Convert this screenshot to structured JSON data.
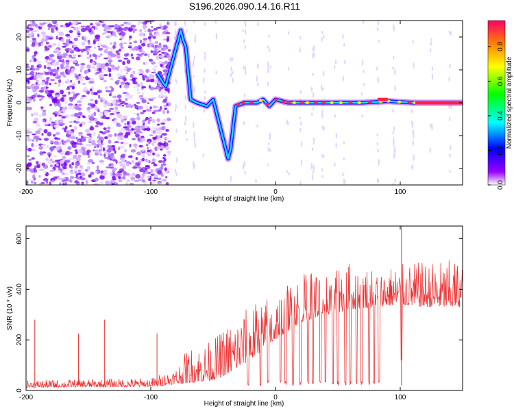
{
  "title": "S196.2026.090.14.16.R11",
  "colors": {
    "snr_line": "#ee3333",
    "background": "#ffffff",
    "axis": "#000000"
  },
  "chart_data": [
    {
      "type": "heatmap",
      "xlabel": "Height of straight line (km)",
      "ylabel": "Frequency (Hz)",
      "xlim": [
        -200,
        150
      ],
      "ylim": [
        -25,
        25
      ],
      "x_ticks": [
        -200,
        -100,
        0,
        100
      ],
      "x_tick_labels": [
        "-200",
        "-100",
        "0",
        "100"
      ],
      "y_ticks": [
        -20,
        -10,
        0,
        10,
        20
      ],
      "y_tick_labels": [
        "-20",
        "-10",
        "0",
        "10",
        "20"
      ],
      "colorbar": {
        "label": "Normalized spectral amplitude",
        "range": [
          0,
          0.95
        ],
        "ticks": [
          0.0,
          0.2,
          0.4,
          0.6,
          0.8
        ],
        "tick_labels": [
          "0.0",
          "0.2",
          "0.4",
          "0.6",
          "0.8"
        ],
        "colormap": [
          "#ffffff",
          "#9900ff",
          "#0000ff",
          "#00ffff",
          "#00ff00",
          "#ffff00",
          "#ff8800",
          "#ff0044"
        ]
      },
      "signal_track": [
        {
          "x": -95,
          "f": 9
        },
        {
          "x": -90,
          "f": 6
        },
        {
          "x": -88,
          "f": 5
        },
        {
          "x": -76,
          "f": 22
        },
        {
          "x": -74,
          "f": 19
        },
        {
          "x": -72,
          "f": 17
        },
        {
          "x": -68,
          "f": 1
        },
        {
          "x": -63,
          "f": 0
        },
        {
          "x": -55,
          "f": -1
        },
        {
          "x": -50,
          "f": 1
        },
        {
          "x": -46,
          "f": -5
        },
        {
          "x": -44,
          "f": -8
        },
        {
          "x": -38,
          "f": -17
        },
        {
          "x": -36,
          "f": -14
        },
        {
          "x": -32,
          "f": -1
        },
        {
          "x": -25,
          "f": 0
        },
        {
          "x": -15,
          "f": 0
        },
        {
          "x": -10,
          "f": 1
        },
        {
          "x": -5,
          "f": -1
        },
        {
          "x": 0,
          "f": 1
        },
        {
          "x": 10,
          "f": 0
        },
        {
          "x": 30,
          "f": 0
        },
        {
          "x": 50,
          "f": 0
        },
        {
          "x": 70,
          "f": 0
        },
        {
          "x": 90,
          "f": 0.5
        },
        {
          "x": 110,
          "f": 0
        },
        {
          "x": 150,
          "f": 0
        }
      ]
    },
    {
      "type": "line",
      "xlabel": "Height of straight line (km)",
      "ylabel": "SNR (10 * v/v)",
      "xlim": [
        -200,
        150
      ],
      "ylim": [
        0,
        650
      ],
      "x_ticks": [
        -200,
        -100,
        0,
        100
      ],
      "x_tick_labels": [
        "-200",
        "-100",
        "0",
        "100"
      ],
      "y_ticks": [
        0,
        200,
        400,
        600
      ],
      "y_tick_labels": [
        "0",
        "200",
        "400",
        "600"
      ],
      "series": [
        {
          "name": "SNR",
          "envelope": [
            {
              "x": -200,
              "base": 12,
              "peak": 40
            },
            {
              "x": -100,
              "base": 15,
              "peak": 50
            },
            {
              "x": -80,
              "base": 25,
              "peak": 90
            },
            {
              "x": -70,
              "base": 30,
              "peak": 170
            },
            {
              "x": -50,
              "base": 40,
              "peak": 200
            },
            {
              "x": -40,
              "base": 60,
              "peak": 260
            },
            {
              "x": -20,
              "base": 120,
              "peak": 340
            },
            {
              "x": 0,
              "base": 200,
              "peak": 390
            },
            {
              "x": 20,
              "base": 270,
              "peak": 460
            },
            {
              "x": 40,
              "base": 300,
              "peak": 500
            },
            {
              "x": 60,
              "base": 320,
              "peak": 510
            },
            {
              "x": 80,
              "base": 330,
              "peak": 490
            },
            {
              "x": 100,
              "base": 340,
              "peak": 500
            },
            {
              "x": 120,
              "base": 330,
              "peak": 510
            },
            {
              "x": 150,
              "base": 330,
              "peak": 520
            }
          ],
          "spikes": [
            {
              "x": -193,
              "y": 280
            },
            {
              "x": -158,
              "y": 225
            },
            {
              "x": -137,
              "y": 280
            },
            {
              "x": -95,
              "y": 225
            },
            {
              "x": 101,
              "y": 650
            }
          ],
          "dropouts": [
            -22,
            -12,
            -6,
            4,
            8,
            14,
            20,
            26,
            30,
            36,
            40,
            46,
            50,
            56,
            60,
            65,
            69,
            75,
            79,
            83
          ],
          "dropout_floor": 20,
          "cutoff": {
            "x": 101,
            "y": 120
          }
        }
      ]
    }
  ]
}
